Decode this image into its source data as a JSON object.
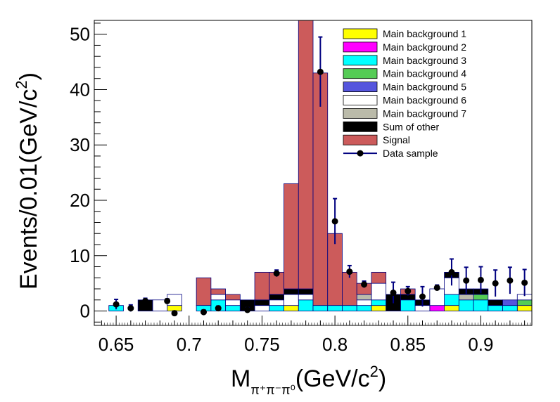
{
  "chart_data": {
    "type": "bar",
    "stacked": true,
    "xlim": [
      0.635,
      0.935
    ],
    "ylim": [
      -2.6,
      52.5
    ],
    "bin_width": 0.01,
    "bin_edges": [
      0.645,
      0.655,
      0.665,
      0.675,
      0.685,
      0.695,
      0.705,
      0.715,
      0.725,
      0.735,
      0.745,
      0.755,
      0.765,
      0.775,
      0.785,
      0.795,
      0.805,
      0.815,
      0.825,
      0.835,
      0.845,
      0.855,
      0.865,
      0.875,
      0.885,
      0.895,
      0.905,
      0.915,
      0.925,
      0.935
    ],
    "x_ticks": [
      0.65,
      0.7,
      0.75,
      0.8,
      0.85,
      0.9
    ],
    "x_tick_labels": [
      "0.65",
      "0.7",
      "0.75",
      "0.8",
      "0.85",
      "0.9"
    ],
    "y_ticks": [
      0,
      10,
      20,
      30,
      40,
      50
    ],
    "y_tick_labels": [
      "0",
      "10",
      "20",
      "30",
      "40",
      "50"
    ],
    "xlabel": {
      "main": "M",
      "sub": "π⁺π⁻π⁰",
      "unit": "(GeV/c",
      "sup": "2",
      "close": ")"
    },
    "ylabel": {
      "main": "Events/0.01(GeV/c",
      "sup": "2",
      "close": ")"
    },
    "legend_position": "top-right",
    "series": [
      {
        "name": "Main background 1",
        "color": "#ffff00",
        "values": [
          0,
          0,
          0,
          0,
          1,
          0,
          0,
          0,
          0,
          0,
          0,
          0,
          1,
          0,
          0,
          0,
          0,
          0,
          1,
          0,
          0,
          0,
          0,
          1,
          0,
          0,
          0,
          0,
          1
        ]
      },
      {
        "name": "Main background 2",
        "color": "#ff00ff",
        "values": [
          0,
          0,
          0,
          0,
          0,
          0,
          0,
          0,
          0,
          0,
          0,
          0,
          0,
          0,
          0,
          0,
          0,
          0,
          0,
          0,
          0,
          0,
          1,
          0,
          0,
          0,
          0,
          0,
          0
        ]
      },
      {
        "name": "Main background 3",
        "color": "#00ffff",
        "values": [
          1,
          0,
          0,
          0,
          0,
          0,
          1,
          2,
          1,
          0,
          0,
          1,
          0,
          2,
          1,
          1,
          1,
          1,
          1,
          0,
          2,
          0,
          0,
          2,
          2,
          2,
          1,
          1,
          0
        ]
      },
      {
        "name": "Main background 4",
        "color": "#55cc55",
        "values": [
          0,
          0,
          0,
          0,
          0,
          0,
          0,
          0,
          0,
          0,
          0,
          0,
          0,
          0,
          0,
          0,
          0,
          0,
          0,
          0,
          0,
          0,
          0,
          0,
          0,
          1,
          0,
          0,
          1
        ]
      },
      {
        "name": "Main background 5",
        "color": "#5555dd",
        "values": [
          0,
          0,
          0,
          0,
          0,
          0,
          0,
          0,
          0,
          0,
          0,
          0,
          0,
          0,
          0,
          0,
          0,
          0,
          0,
          0,
          0,
          0,
          0,
          0,
          0,
          0,
          0,
          1,
          0
        ]
      },
      {
        "name": "Main background 6",
        "color": "#ffffff",
        "values": [
          0,
          0,
          0,
          2,
          2,
          0,
          0,
          1,
          1,
          0,
          1,
          1,
          2,
          1,
          0,
          0,
          0,
          1,
          3,
          0,
          0,
          1,
          3,
          3,
          0,
          0,
          0,
          0,
          1
        ]
      },
      {
        "name": "Main background 7",
        "color": "#bbbbaa",
        "values": [
          0,
          0,
          0,
          0,
          0,
          0,
          0,
          0,
          0,
          0,
          0,
          0,
          0,
          0,
          0,
          0,
          0,
          1,
          0,
          0,
          0,
          0,
          0,
          0,
          1,
          0,
          0,
          0,
          0
        ]
      },
      {
        "name": "Sum of other",
        "color": "#000000",
        "values": [
          0,
          0,
          2,
          0,
          0,
          0,
          0,
          0,
          0,
          2,
          1,
          1,
          1,
          1,
          0,
          0,
          0,
          0,
          0,
          3,
          1,
          1,
          0,
          1,
          1,
          1,
          1,
          0,
          0
        ]
      },
      {
        "name": "Signal",
        "color": "#cc5b5b",
        "values": [
          0,
          0,
          0,
          0,
          0,
          0,
          5,
          1,
          1,
          0,
          5,
          4,
          19,
          49,
          42,
          13,
          6,
          2,
          2,
          0,
          1,
          0,
          0,
          0,
          0,
          0,
          0,
          0,
          0
        ]
      }
    ],
    "data_sample": {
      "name": "Data sample",
      "color": "#000080",
      "x": [
        0.65,
        0.66,
        0.67,
        0.685,
        0.69,
        0.71,
        0.72,
        0.74,
        0.76,
        0.79,
        0.8,
        0.81,
        0.82,
        0.84,
        0.85,
        0.86,
        0.87,
        0.88,
        0.89,
        0.9,
        0.91,
        0.92,
        0.93
      ],
      "y": [
        1.2,
        0.5,
        1.8,
        1.8,
        -0.4,
        -0.2,
        0.5,
        0.2,
        6.8,
        43.2,
        16.2,
        7.1,
        4.8,
        3.3,
        3.6,
        2.6,
        4.2,
        7.0,
        5.5,
        5.6,
        5.0,
        5.5,
        5.1
      ],
      "err": [
        0.9,
        0.6,
        0.5,
        0.4,
        0.4,
        0.4,
        0.4,
        0.4,
        0.6,
        6.3,
        4.1,
        1.1,
        0.6,
        1.9,
        0.8,
        1.8,
        0.5,
        2.4,
        2.4,
        2.4,
        2.4,
        2.4,
        2.4
      ]
    }
  }
}
